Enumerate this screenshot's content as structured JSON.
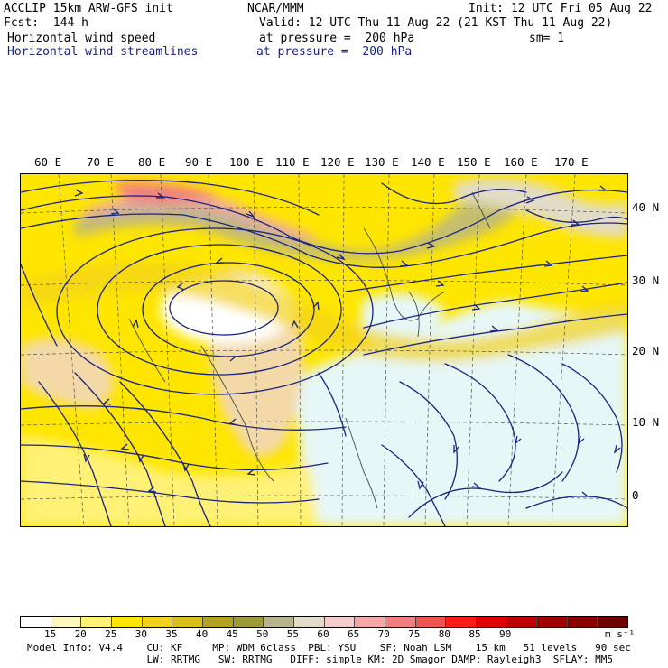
{
  "header": {
    "model": "ACCLIP 15km ARW-GFS init",
    "org": "NCAR/MMM",
    "init": "Init: 12 UTC Fri 05 Aug 22",
    "fcst": "Fcst:  144 h",
    "valid": "Valid: 12 UTC Thu 11 Aug 22 (21 KST Thu 11 Aug 22)",
    "field1": "Horizontal wind speed",
    "pressure1": "at pressure =  200 hPa",
    "sm": "sm= 1",
    "field2": "Horizontal wind streamlines",
    "pressure2": "at pressure =  200 hPa"
  },
  "map": {
    "lon_labels": [
      "60 E",
      "70 E",
      "80 E",
      "90 E",
      "100 E",
      "110 E",
      "120 E",
      "130 E",
      "140 E",
      "150 E",
      "160 E",
      "170 E"
    ],
    "lat_labels": [
      "40 N",
      "30 N",
      "20 N",
      "10 N",
      "0"
    ],
    "colors": {
      "land_tan": "#f3d9a8",
      "ocean_pale": "#e6f7f7",
      "streamline": "#1a237e"
    }
  },
  "colorbar": {
    "colors": [
      "#ffffff",
      "#fff7bc",
      "#fff176",
      "#ffe600",
      "#f2d21a",
      "#d9bf1a",
      "#b5a121",
      "#9e9a3a",
      "#b7b48c",
      "#e2dcc8",
      "#f6cccc",
      "#f4a8a8",
      "#f08080",
      "#ef5350",
      "#ff1a1a",
      "#e00000",
      "#c00000",
      "#a00000",
      "#8a0000",
      "#6e0000"
    ],
    "ticks": [
      "15",
      "20",
      "25",
      "30",
      "35",
      "40",
      "45",
      "50",
      "55",
      "60",
      "65",
      "70",
      "75",
      "80",
      "85",
      "90"
    ],
    "units": "m s⁻¹"
  },
  "footer": {
    "line1": "Model Info: V4.4    CU: KF     MP: WDM 6class  PBL: YSU    SF: Noah LSM    15 km   51 levels   90 sec",
    "line2": "                    LW: RRTMG   SW: RRTMG   DIFF: simple KM: 2D Smagor DAMP: Rayleigh3  SFLAY: MM5"
  }
}
